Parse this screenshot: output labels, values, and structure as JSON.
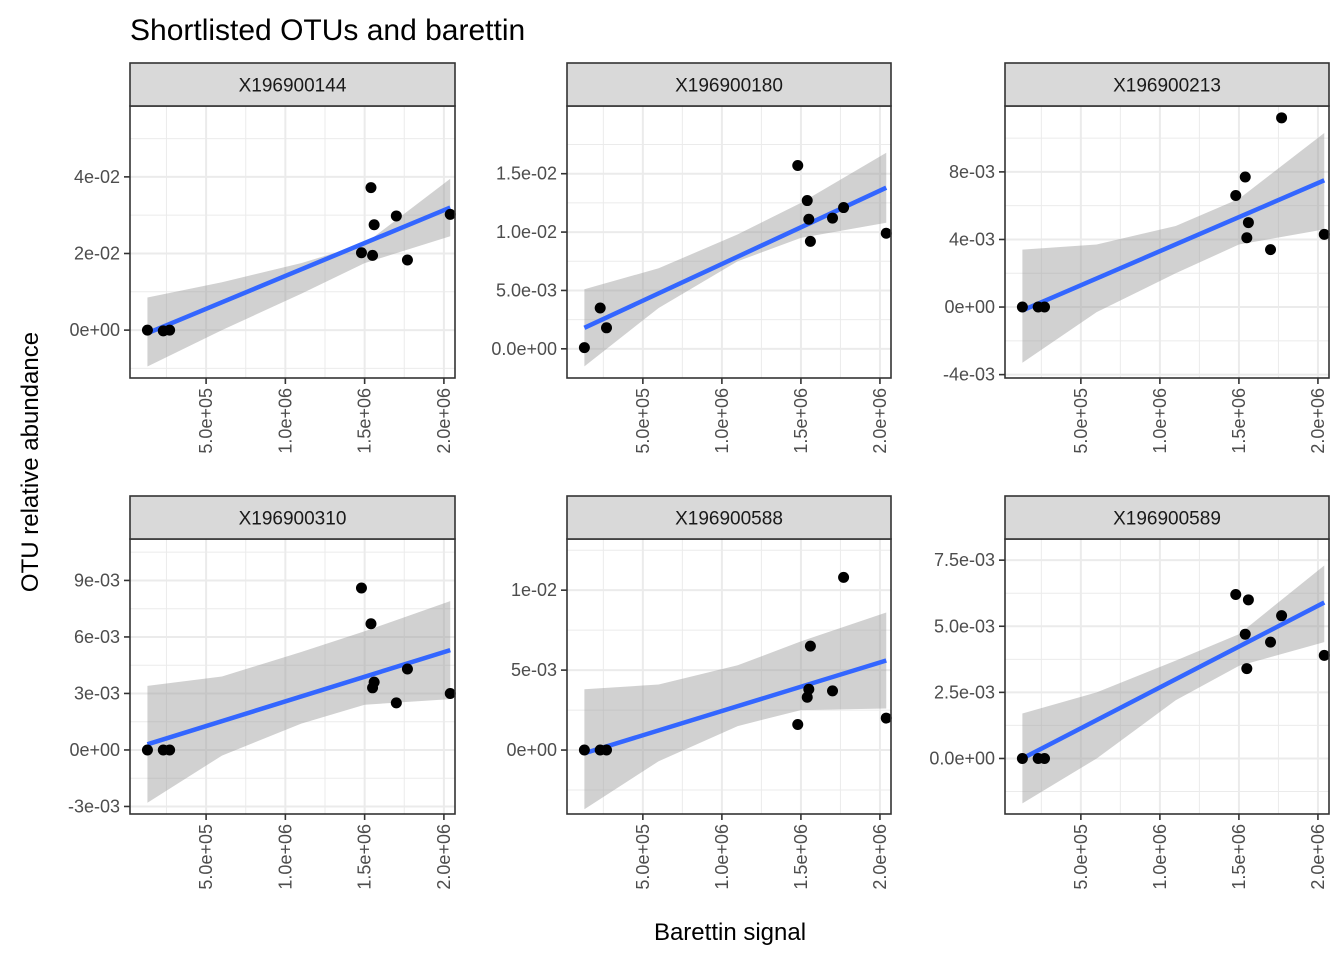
{
  "title": "Shortlisted OTUs and barettin",
  "xlabel": "Barettin signal",
  "ylabel": "OTU relative abundance",
  "colors": {
    "fit_line": "#3366FF",
    "confidence_band": "#999999",
    "points": "#000000",
    "strip_background": "#D9D9D9",
    "grid": "#EBEBEB"
  },
  "chart_data": [
    {
      "type": "scatter",
      "panel": "X196900144",
      "x_ticks": [
        "5.0e+05",
        "1.0e+06",
        "1.5e+06",
        "2.0e+06"
      ],
      "y_ticks": [
        "0e+00",
        "2e-02",
        "4e-02"
      ],
      "xlim": [
        20000,
        2070000
      ],
      "ylim": [
        -0.0125,
        0.0585
      ],
      "x": [
        130000,
        230000,
        270000,
        1480000,
        1540000,
        1550000,
        1560000,
        1700000,
        1770000,
        2040000
      ],
      "y": [
        0.0,
        -0.0002,
        0.0,
        0.0202,
        0.0372,
        0.0195,
        0.0275,
        0.0298,
        0.0183,
        0.0302
      ],
      "fit": {
        "x": [
          130000,
          2040000
        ],
        "y": [
          -0.0008,
          0.032
        ]
      },
      "band": {
        "x": [
          130000,
          600000,
          1100000,
          1500000,
          2040000
        ],
        "lower": [
          -0.0095,
          0.0,
          0.0095,
          0.0175,
          0.0245
        ],
        "upper": [
          0.0085,
          0.0125,
          0.0175,
          0.0225,
          0.0395
        ]
      },
      "grid": true
    },
    {
      "type": "scatter",
      "panel": "X196900180",
      "x_ticks": [
        "5.0e+05",
        "1.0e+06",
        "1.5e+06",
        "2.0e+06"
      ],
      "y_ticks": [
        "0.0e+00",
        "5.0e-03",
        "1.0e-02",
        "1.5e-02"
      ],
      "xlim": [
        20000,
        2070000
      ],
      "ylim": [
        -0.0025,
        0.0208
      ],
      "x": [
        130000,
        230000,
        270000,
        1480000,
        1540000,
        1550000,
        1560000,
        1700000,
        1770000,
        2040000
      ],
      "y": [
        0.0001,
        0.0035,
        0.0018,
        0.0157,
        0.0127,
        0.0111,
        0.0092,
        0.0112,
        0.0121,
        0.0099
      ],
      "fit": {
        "x": [
          130000,
          2040000
        ],
        "y": [
          0.0018,
          0.0138
        ]
      },
      "band": {
        "x": [
          130000,
          600000,
          1100000,
          1500000,
          2040000
        ],
        "lower": [
          -0.0015,
          0.0035,
          0.0075,
          0.0095,
          0.0108
        ],
        "upper": [
          0.0051,
          0.0069,
          0.0098,
          0.0125,
          0.0168
        ]
      },
      "grid": true
    },
    {
      "type": "scatter",
      "panel": "X196900213",
      "x_ticks": [
        "5.0e+05",
        "1.0e+06",
        "1.5e+06",
        "2.0e+06"
      ],
      "y_ticks": [
        "-4e-03",
        "0e+00",
        "4e-03",
        "8e-03"
      ],
      "xlim": [
        20000,
        2070000
      ],
      "ylim": [
        -0.0042,
        0.0119
      ],
      "x": [
        130000,
        230000,
        270000,
        1480000,
        1540000,
        1550000,
        1560000,
        1700000,
        1770000,
        2040000
      ],
      "y": [
        0.0,
        0.0,
        0.0,
        0.0066,
        0.0077,
        0.0041,
        0.005,
        0.0034,
        0.0112,
        0.0043
      ],
      "fit": {
        "x": [
          130000,
          2040000
        ],
        "y": [
          -0.0002,
          0.0075
        ]
      },
      "band": {
        "x": [
          130000,
          600000,
          1100000,
          1500000,
          2040000
        ],
        "lower": [
          -0.0033,
          -0.0003,
          0.002,
          0.0037,
          0.0046
        ],
        "upper": [
          0.0034,
          0.0037,
          0.0048,
          0.0064,
          0.0103
        ]
      },
      "grid": true
    },
    {
      "type": "scatter",
      "panel": "X196900310",
      "x_ticks": [
        "5.0e+05",
        "1.0e+06",
        "1.5e+06",
        "2.0e+06"
      ],
      "y_ticks": [
        "-3e-03",
        "0e+00",
        "3e-03",
        "6e-03",
        "9e-03"
      ],
      "xlim": [
        20000,
        2070000
      ],
      "ylim": [
        -0.0034,
        0.0112
      ],
      "x": [
        130000,
        230000,
        270000,
        1480000,
        1540000,
        1550000,
        1560000,
        1700000,
        1770000,
        2040000
      ],
      "y": [
        0.0,
        0.0,
        0.0,
        0.0086,
        0.0067,
        0.0033,
        0.0036,
        0.0025,
        0.0043,
        0.003
      ],
      "fit": {
        "x": [
          130000,
          2040000
        ],
        "y": [
          0.0003,
          0.0053
        ]
      },
      "band": {
        "x": [
          130000,
          600000,
          1100000,
          1500000,
          2040000
        ],
        "lower": [
          -0.0028,
          -0.0003,
          0.0014,
          0.0024,
          0.0027
        ],
        "upper": [
          0.0034,
          0.0039,
          0.0052,
          0.0063,
          0.0079
        ]
      },
      "grid": true
    },
    {
      "type": "scatter",
      "panel": "X196900588",
      "x_ticks": [
        "5.0e+05",
        "1.0e+06",
        "1.5e+06",
        "2.0e+06"
      ],
      "y_ticks": [
        "0e+00",
        "5e-03",
        "1e-02"
      ],
      "xlim": [
        20000,
        2070000
      ],
      "ylim": [
        -0.004,
        0.0132
      ],
      "x": [
        130000,
        230000,
        270000,
        1480000,
        1540000,
        1550000,
        1560000,
        1700000,
        1770000,
        2040000
      ],
      "y": [
        0.0,
        0.0,
        0.0,
        0.0016,
        0.0033,
        0.0038,
        0.0065,
        0.0037,
        0.0108,
        0.002
      ],
      "fit": {
        "x": [
          130000,
          2040000
        ],
        "y": [
          -0.0002,
          0.0056
        ]
      },
      "band": {
        "x": [
          130000,
          600000,
          1100000,
          1500000,
          2040000
        ],
        "lower": [
          -0.0037,
          -0.0007,
          0.0015,
          0.0025,
          0.0026
        ],
        "upper": [
          0.0038,
          0.0041,
          0.0053,
          0.0068,
          0.0086
        ]
      },
      "grid": true
    },
    {
      "type": "scatter",
      "panel": "X196900589",
      "x_ticks": [
        "5.0e+05",
        "1.0e+06",
        "1.5e+06",
        "2.0e+06"
      ],
      "y_ticks": [
        "0.0e+00",
        "2.5e-03",
        "5.0e-03",
        "7.5e-03"
      ],
      "xlim": [
        20000,
        2070000
      ],
      "ylim": [
        -0.0021,
        0.0083
      ],
      "x": [
        130000,
        230000,
        270000,
        1480000,
        1540000,
        1550000,
        1560000,
        1700000,
        1770000,
        2040000
      ],
      "y": [
        0.0,
        0.0,
        0.0,
        0.0062,
        0.0047,
        0.0034,
        0.006,
        0.0044,
        0.0054,
        0.0039
      ],
      "fit": {
        "x": [
          130000,
          2040000
        ],
        "y": [
          0.0,
          0.0059
        ]
      },
      "band": {
        "x": [
          130000,
          600000,
          1100000,
          1500000,
          2040000
        ],
        "lower": [
          -0.0017,
          0.0,
          0.0022,
          0.0035,
          0.0044
        ],
        "upper": [
          0.0017,
          0.0025,
          0.0037,
          0.0047,
          0.0073
        ]
      },
      "grid": true
    }
  ]
}
